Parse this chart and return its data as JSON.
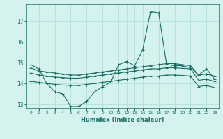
{
  "xlabel": "Humidex (Indice chaleur)",
  "background_color": "#d4f2ee",
  "grid_color": "#aaddd8",
  "line_color": "#1a6b64",
  "xlim": [
    -0.5,
    23.5
  ],
  "ylim": [
    12.8,
    17.8
  ],
  "yticks": [
    13,
    14,
    15,
    16,
    17
  ],
  "xticks": [
    0,
    1,
    2,
    3,
    4,
    5,
    6,
    7,
    8,
    9,
    10,
    11,
    12,
    13,
    14,
    15,
    16,
    17,
    18,
    19,
    20,
    21,
    22,
    23
  ],
  "line1_y": [
    14.9,
    14.7,
    14.0,
    13.6,
    13.5,
    12.9,
    12.9,
    13.15,
    13.6,
    13.85,
    14.05,
    14.9,
    15.05,
    14.85,
    15.6,
    17.45,
    17.4,
    14.9,
    14.85,
    14.85,
    14.75,
    14.4,
    14.7,
    14.2
  ],
  "line2_y": [
    14.75,
    14.6,
    14.55,
    14.5,
    14.45,
    14.4,
    14.4,
    14.45,
    14.5,
    14.55,
    14.6,
    14.65,
    14.7,
    14.75,
    14.8,
    14.85,
    14.9,
    14.95,
    14.95,
    14.9,
    14.85,
    14.4,
    14.45,
    14.35
  ],
  "line3_y": [
    14.5,
    14.4,
    14.35,
    14.3,
    14.28,
    14.25,
    14.25,
    14.3,
    14.35,
    14.4,
    14.45,
    14.5,
    14.55,
    14.6,
    14.65,
    14.7,
    14.7,
    14.75,
    14.75,
    14.72,
    14.7,
    14.15,
    14.2,
    14.1
  ],
  "line4_y": [
    14.1,
    14.05,
    14.0,
    13.95,
    13.92,
    13.9,
    13.9,
    13.95,
    14.0,
    14.05,
    14.1,
    14.15,
    14.2,
    14.25,
    14.3,
    14.35,
    14.35,
    14.4,
    14.4,
    14.38,
    14.35,
    13.85,
    13.9,
    13.8
  ]
}
